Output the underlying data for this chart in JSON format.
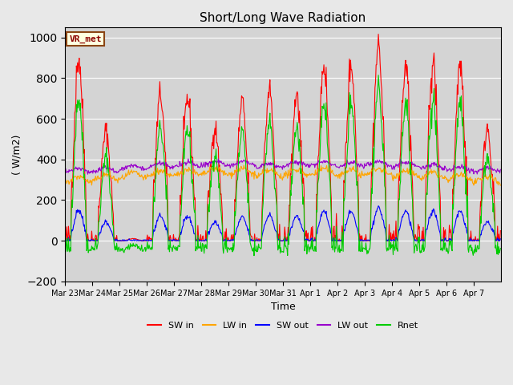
{
  "title": "Short/Long Wave Radiation",
  "ylabel": "( W/m2)",
  "xlabel": "Time",
  "station_label": "VR_met",
  "ylim": [
    -200,
    1050
  ],
  "colors": {
    "SW_in": "#ff0000",
    "LW_in": "#ffa500",
    "SW_out": "#0000ff",
    "LW_out": "#9900cc",
    "Rnet": "#00cc00"
  },
  "x_tick_labels": [
    "Mar 23",
    "Mar 24",
    "Mar 25",
    "Mar 26",
    "Mar 27",
    "Mar 28",
    "Mar 29",
    "Mar 30",
    "Mar 31",
    "Apr 1",
    "Apr 2",
    "Apr 3",
    "Apr 4",
    "Apr 5",
    "Apr 6",
    "Apr 7"
  ],
  "num_days": 16,
  "hours_per_day": 24,
  "dt_hours": 0.5,
  "sw_in_peaks": [
    900,
    540,
    10,
    720,
    700,
    560,
    680,
    740,
    720,
    870,
    870,
    960,
    855,
    870,
    870,
    560
  ],
  "lw_in_base": [
    300,
    310,
    320,
    330,
    335,
    340,
    340,
    330,
    335,
    340,
    335,
    340,
    330,
    320,
    310,
    300
  ],
  "lw_out_base": [
    345,
    350,
    360,
    370,
    375,
    380,
    380,
    370,
    375,
    380,
    375,
    380,
    375,
    365,
    355,
    350
  ],
  "fig_facecolor": "#e8e8e8",
  "ax_facecolor": "#d4d4d4",
  "grid_color": "#ffffff",
  "yticks": [
    -200,
    0,
    200,
    400,
    600,
    800,
    1000
  ]
}
